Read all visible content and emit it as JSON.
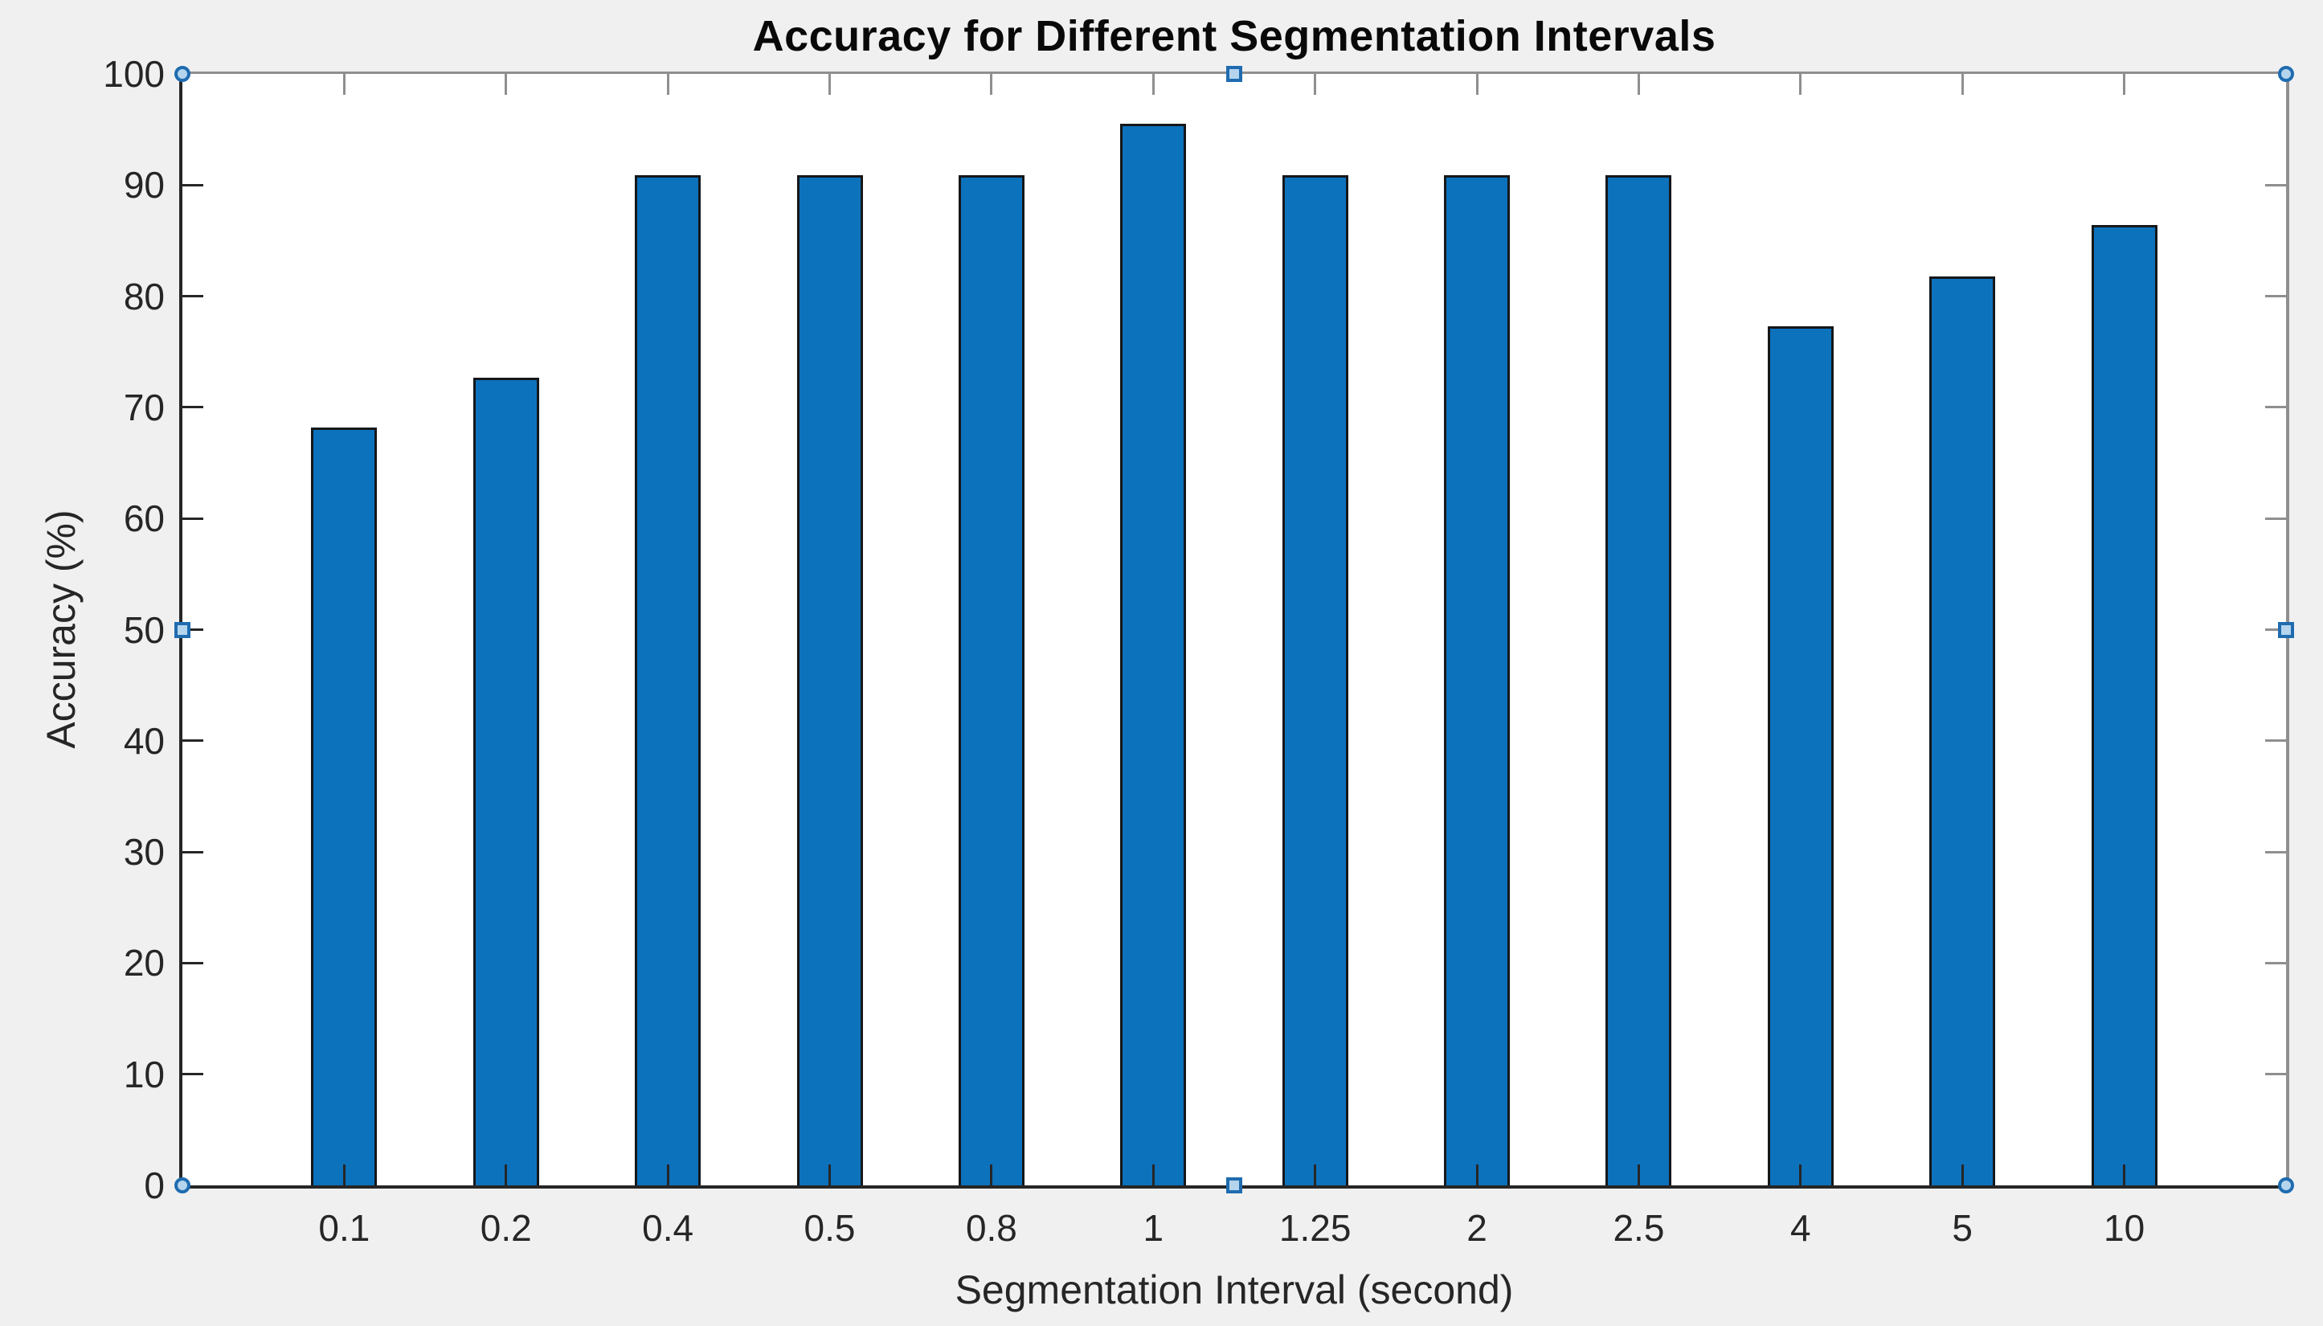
{
  "figure": {
    "background_color": "#f0f0f0",
    "plot_background_color": "#ffffff",
    "axis_color": "#262626",
    "box_line_color": "#8f8f8f"
  },
  "chart_data": {
    "type": "bar",
    "title": "Accuracy for Different Segmentation Intervals",
    "xlabel": "Segmentation Interval (second)",
    "ylabel": "Accuracy (%)",
    "categories": [
      "0.1",
      "0.2",
      "0.4",
      "0.5",
      "0.8",
      "1",
      "1.25",
      "2",
      "2.5",
      "4",
      "5",
      "10"
    ],
    "values": [
      68.2,
      72.7,
      90.9,
      90.9,
      90.9,
      95.5,
      90.9,
      90.9,
      90.9,
      77.3,
      81.8,
      86.4
    ],
    "ylim": [
      0,
      100
    ],
    "yticks": [
      0,
      10,
      20,
      30,
      40,
      50,
      60,
      70,
      80,
      90,
      100
    ],
    "grid": false,
    "legend_position": "none",
    "bar_color": "#0d72bc",
    "bar_edge_color": "#15171a"
  },
  "selection": {
    "handle_fill": "#b5d5ee",
    "handle_border": "#1f6cb0",
    "handle_positions": [
      "top-left",
      "top-center",
      "top-right",
      "middle-left",
      "middle-right",
      "bottom-left",
      "bottom-center",
      "bottom-right"
    ]
  }
}
